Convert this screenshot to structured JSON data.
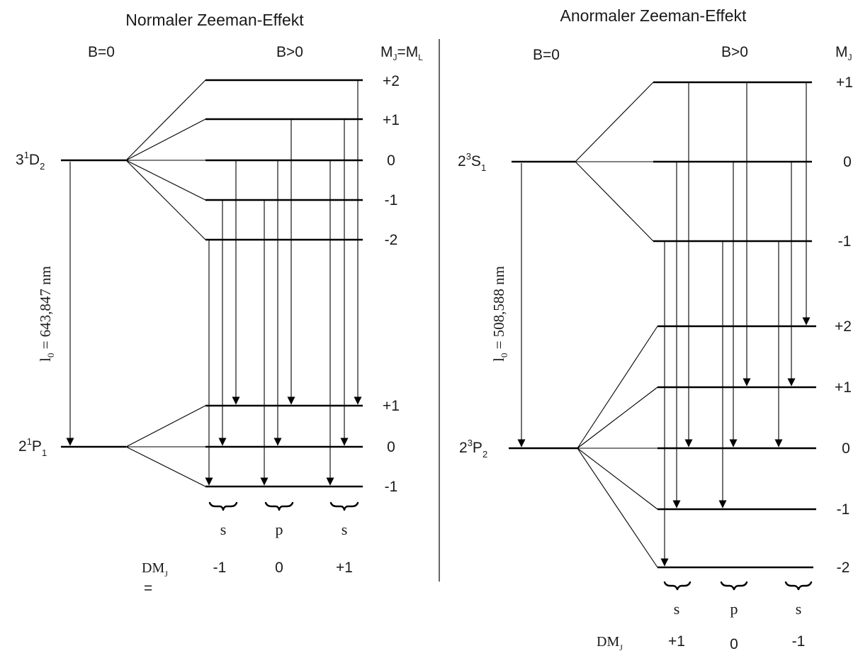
{
  "normal": {
    "title": "Normaler Zeeman-Effekt",
    "b0": "B=0",
    "bpos": "B>0",
    "mj_header": {
      "main": "M",
      "sub1": "J",
      "mid": "=M",
      "sub2": "L"
    },
    "upper_term": {
      "pre": "3",
      "sup": "1",
      "base": "D",
      "sub": "2"
    },
    "lower_term": {
      "pre": "2",
      "sup": "1",
      "base": "P",
      "sub": "1"
    },
    "wavelength": {
      "symbol": "l",
      "sub": "0",
      "text": " =  643,847  nm"
    },
    "upper_mj": [
      "+2",
      "+1",
      "0",
      "-1",
      "-2"
    ],
    "lower_mj": [
      "+1",
      "0",
      "-1"
    ],
    "pol": [
      "s",
      "p",
      "s"
    ],
    "delta_label": {
      "main": "DM",
      "sub": "J",
      "eq": "="
    },
    "delta_values": [
      "-1",
      "0",
      "+1"
    ]
  },
  "anomalous": {
    "title": "Anormaler Zeeman-Effekt",
    "b0": "B=0",
    "bpos": "B>0",
    "mj_header": {
      "main": "M",
      "sub": "J"
    },
    "upper_term": {
      "pre": "2",
      "sup": "3",
      "base": "S",
      "sub": "1"
    },
    "lower_term": {
      "pre": "2",
      "sup": "3",
      "base": "P",
      "sub": "2"
    },
    "wavelength": {
      "symbol": "l",
      "sub": "0",
      "text": " =  508,588  nm"
    },
    "upper_mj": [
      "+1",
      "0",
      "-1"
    ],
    "lower_mj": [
      "+2",
      "+1",
      "0",
      "-1",
      "-2"
    ],
    "pol": [
      "s",
      "p",
      "s"
    ],
    "delta_label": {
      "main": "DM",
      "sub": "J"
    },
    "delta_values": [
      "+1",
      "0",
      "-1"
    ]
  }
}
